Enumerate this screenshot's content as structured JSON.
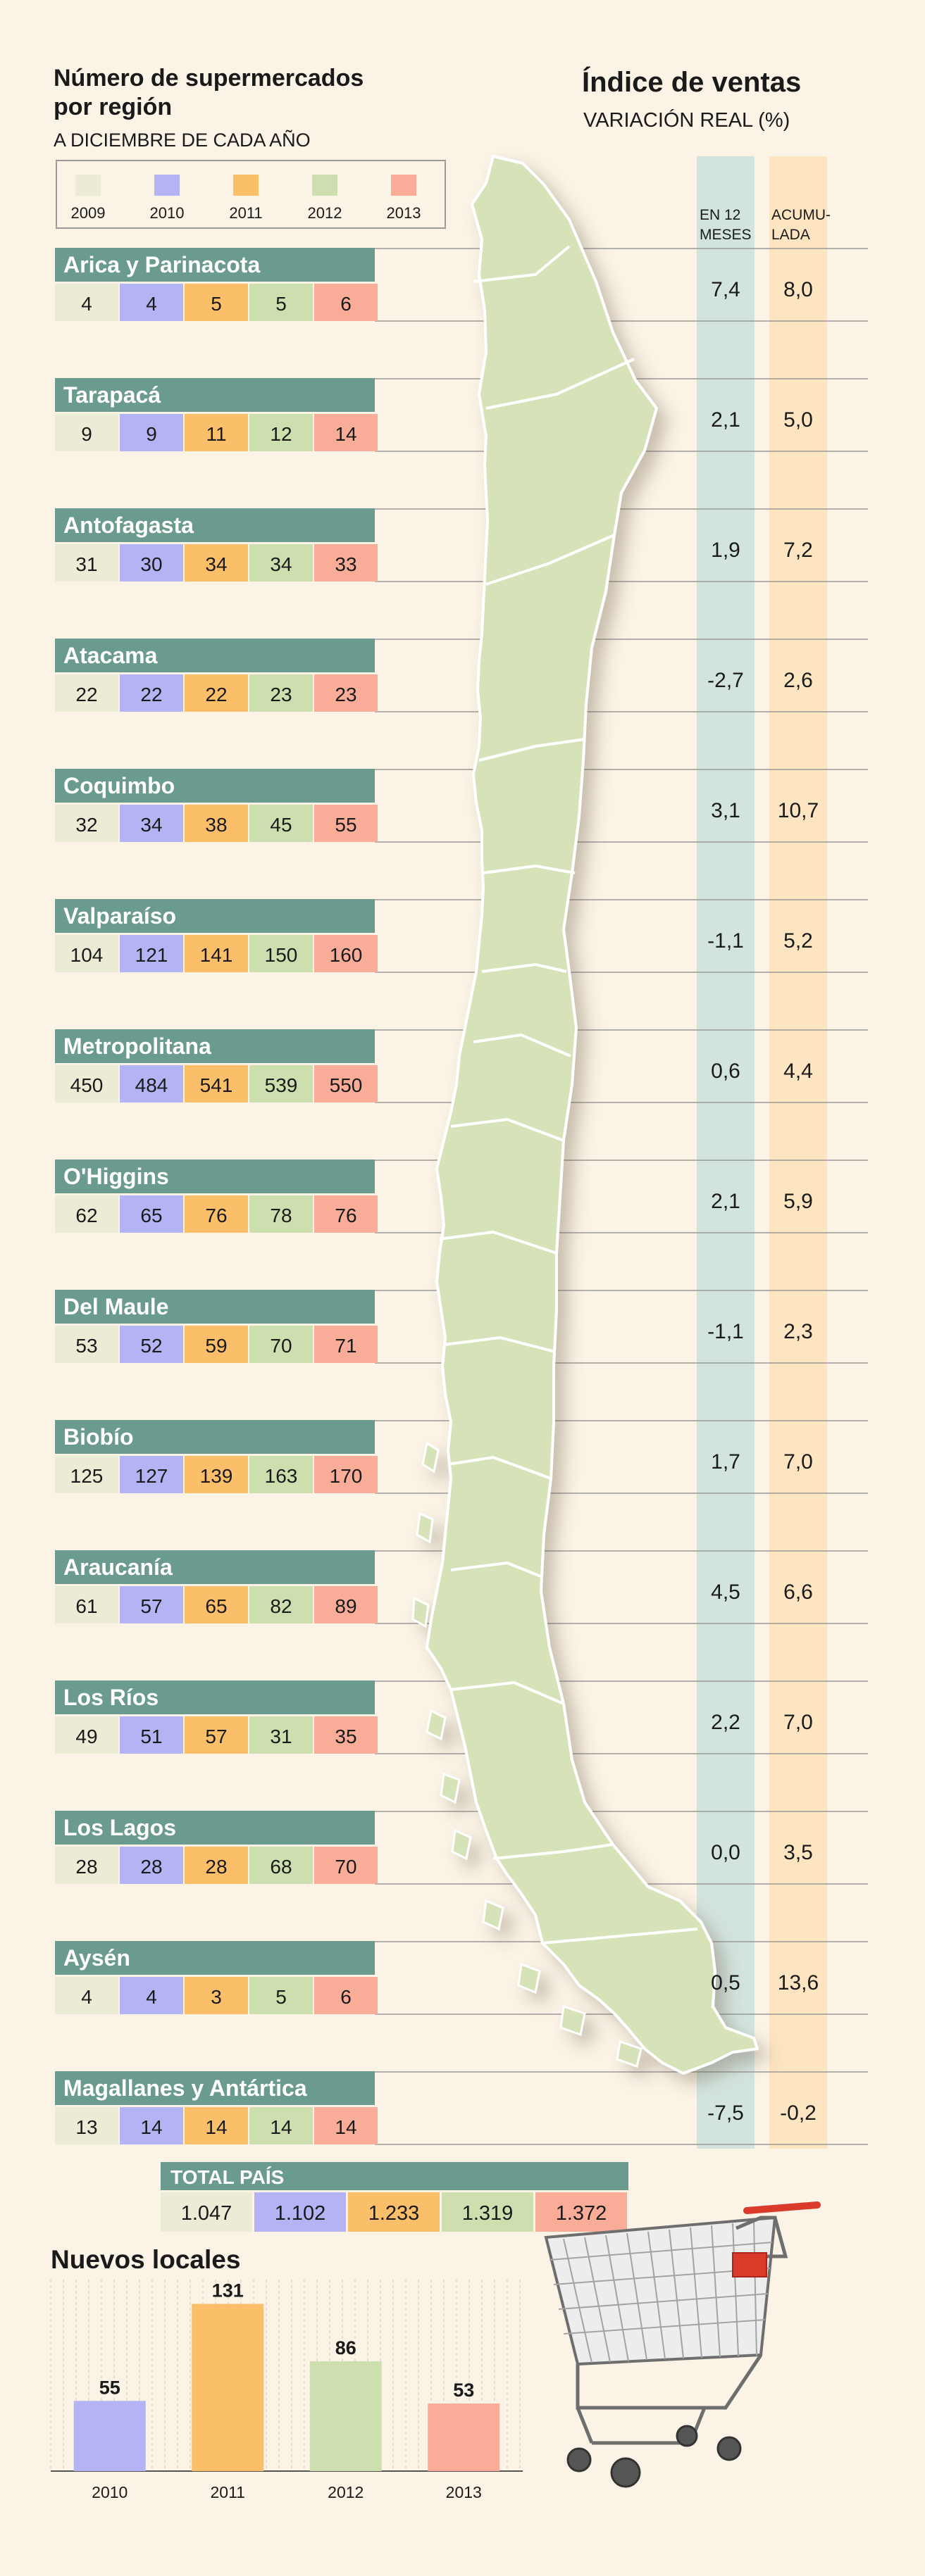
{
  "header": {
    "title_line1": "Número de supermercados",
    "title_line2": "por región",
    "subtitle": "A DICIEMBRE DE CADA AÑO"
  },
  "legend": {
    "years": [
      "2009",
      "2010",
      "2011",
      "2012",
      "2013"
    ],
    "colors": [
      "#ecebd6",
      "#b4b4f4",
      "#fbbf6a",
      "#cddfae",
      "#f9ad98"
    ]
  },
  "index_header": {
    "title": "Índice de ventas",
    "subtitle": "VARIACIÓN REAL (%)",
    "col1": [
      "EN 12",
      "MESES"
    ],
    "col2": [
      "ACUMU-",
      "LADA"
    ]
  },
  "colors": {
    "region_band": "#6a9b8e",
    "col1_bg": "#d3e4df",
    "col2_bg": "#fde5c2",
    "map_fill": "#d6e3b8",
    "background": "#faf3e6"
  },
  "chart_data": [
    {
      "type": "table",
      "title": "Número de supermercados por región",
      "subtitle": "A DICIEMBRE DE CADA AÑO",
      "columns": [
        "2009",
        "2010",
        "2011",
        "2012",
        "2013"
      ],
      "regions": [
        {
          "name": "Arica y Parinacota",
          "values": [
            "4",
            "4",
            "5",
            "5",
            "6"
          ],
          "var12": "7,4",
          "acum": "8,0"
        },
        {
          "name": "Tarapacá",
          "values": [
            "9",
            "9",
            "11",
            "12",
            "14"
          ],
          "var12": "2,1",
          "acum": "5,0"
        },
        {
          "name": "Antofagasta",
          "values": [
            "31",
            "30",
            "34",
            "34",
            "33"
          ],
          "var12": "1,9",
          "acum": "7,2"
        },
        {
          "name": "Atacama",
          "values": [
            "22",
            "22",
            "22",
            "23",
            "23"
          ],
          "var12": "-2,7",
          "acum": "2,6"
        },
        {
          "name": "Coquimbo",
          "values": [
            "32",
            "34",
            "38",
            "45",
            "55"
          ],
          "var12": "3,1",
          "acum": "10,7"
        },
        {
          "name": "Valparaíso",
          "values": [
            "104",
            "121",
            "141",
            "150",
            "160"
          ],
          "var12": "-1,1",
          "acum": "5,2"
        },
        {
          "name": "Metropolitana",
          "values": [
            "450",
            "484",
            "541",
            "539",
            "550"
          ],
          "var12": "0,6",
          "acum": "4,4"
        },
        {
          "name": "O'Higgins",
          "values": [
            "62",
            "65",
            "76",
            "78",
            "76"
          ],
          "var12": "2,1",
          "acum": "5,9"
        },
        {
          "name": "Del Maule",
          "values": [
            "53",
            "52",
            "59",
            "70",
            "71"
          ],
          "var12": "-1,1",
          "acum": "2,3"
        },
        {
          "name": "Biobío",
          "values": [
            "125",
            "127",
            "139",
            "163",
            "170"
          ],
          "var12": "1,7",
          "acum": "7,0"
        },
        {
          "name": "Araucanía",
          "values": [
            "61",
            "57",
            "65",
            "82",
            "89"
          ],
          "var12": "4,5",
          "acum": "6,6"
        },
        {
          "name": "Los Ríos",
          "values": [
            "49",
            "51",
            "57",
            "31",
            "35"
          ],
          "var12": "2,2",
          "acum": "7,0"
        },
        {
          "name": "Los Lagos",
          "values": [
            "28",
            "28",
            "28",
            "68",
            "70"
          ],
          "var12": "0,0",
          "acum": "3,5"
        },
        {
          "name": "Aysén",
          "values": [
            "4",
            "4",
            "3",
            "5",
            "6"
          ],
          "var12": "0,5",
          "acum": "13,6"
        },
        {
          "name": "Magallanes y Antártica",
          "values": [
            "13",
            "14",
            "14",
            "14",
            "14"
          ],
          "var12": "-7,5",
          "acum": "-0,2"
        }
      ],
      "total": {
        "label": "TOTAL PAÍS",
        "values": [
          "1.047",
          "1.102",
          "1.233",
          "1.319",
          "1.372"
        ]
      }
    },
    {
      "type": "bar",
      "title": "Nuevos locales",
      "categories": [
        "2010",
        "2011",
        "2012",
        "2013"
      ],
      "values": [
        55,
        131,
        86,
        53
      ],
      "labels": [
        "55",
        "131",
        "86",
        "53"
      ],
      "colors": [
        "#b4b4f4",
        "#fbbf6a",
        "#cddfae",
        "#f9ad98"
      ],
      "ylim": [
        0,
        150
      ]
    }
  ]
}
